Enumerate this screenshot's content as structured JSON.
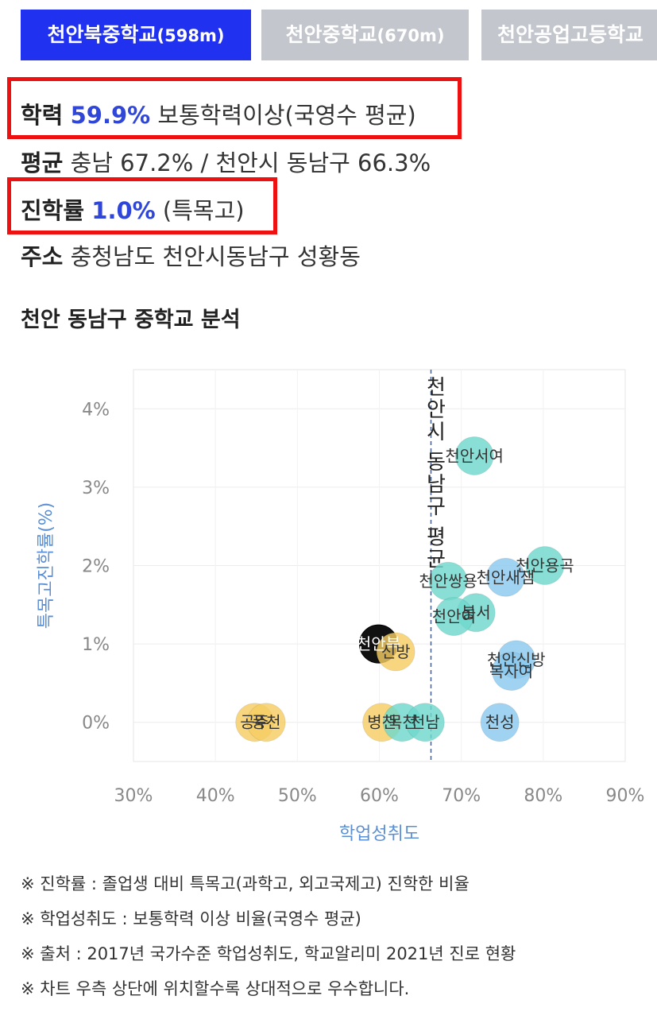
{
  "tabs": [
    {
      "name": "천안북중학교",
      "dist": "(598m)",
      "active": true
    },
    {
      "name": "천안중학교",
      "dist": "(670m)",
      "active": false
    },
    {
      "name": "천안공업고등학교",
      "dist": "",
      "active": false
    }
  ],
  "info": {
    "achievement_label": "학력",
    "achievement_value": "59.9%",
    "achievement_desc": "보통학력이상(국영수 평균)",
    "average_label": "평균",
    "average_text": "충남 67.2% / 천안시 동남구 66.3%",
    "advance_label": "진학률",
    "advance_value": "1.0%",
    "advance_desc": "(특목고)",
    "address_label": "주소",
    "address_text": "충청남도 천안시동남구 성황동"
  },
  "section_title": "천안 동남구 중학교 분석",
  "chart_data": {
    "type": "scatter",
    "xlabel": "학업성취도",
    "ylabel": "특목고진학률(%)",
    "xlim": [
      30,
      90
    ],
    "ylim": [
      -0.5,
      4.5
    ],
    "xticks": [
      "30%",
      "40%",
      "50%",
      "60%",
      "70%",
      "80%",
      "90%"
    ],
    "yticks": [
      "0%",
      "1%",
      "2%",
      "3%",
      "4%"
    ],
    "reference_line": {
      "x": 66.3,
      "label": "천안시 동남구 평균"
    },
    "colors": {
      "yellow": "#f5cd63",
      "teal": "#6fd8cc",
      "blue": "#8ac9ee",
      "black": "#111111"
    },
    "points": [
      {
        "label": "천안북",
        "x": 59.9,
        "y": 1.0,
        "color": "black"
      },
      {
        "label": "신방",
        "x": 62.0,
        "y": 0.9,
        "color": "yellow"
      },
      {
        "label": "공주",
        "x": 44.8,
        "y": 0.0,
        "color": "yellow"
      },
      {
        "label": "풍천",
        "x": 46.2,
        "y": 0.0,
        "color": "yellow"
      },
      {
        "label": "병천",
        "x": 60.3,
        "y": 0.0,
        "color": "yellow"
      },
      {
        "label": "목천",
        "x": 62.8,
        "y": 0.0,
        "color": "teal"
      },
      {
        "label": "천남",
        "x": 65.6,
        "y": 0.0,
        "color": "teal"
      },
      {
        "label": "천성",
        "x": 74.7,
        "y": 0.0,
        "color": "blue"
      },
      {
        "label": "천안서여",
        "x": 71.6,
        "y": 3.4,
        "color": "teal"
      },
      {
        "label": "천안용곡",
        "x": 80.2,
        "y": 2.0,
        "color": "teal"
      },
      {
        "label": "천안새샘",
        "x": 75.4,
        "y": 1.85,
        "color": "blue"
      },
      {
        "label": "천안쌍용",
        "x": 68.4,
        "y": 1.8,
        "color": "teal"
      },
      {
        "label": "봉서",
        "x": 71.8,
        "y": 1.4,
        "color": "teal"
      },
      {
        "label": "천안여",
        "x": 69.1,
        "y": 1.35,
        "color": "teal"
      },
      {
        "label": "천안신방",
        "x": 76.7,
        "y": 0.8,
        "color": "blue"
      },
      {
        "label": "복자여",
        "x": 76.1,
        "y": 0.65,
        "color": "blue"
      }
    ]
  },
  "notes": [
    "※ 진학률 : 졸업생 대비 특목고(과학고, 외고국제고) 진학한 비율",
    "※ 학업성취도 : 보통학력 이상 비율(국영수 평균)",
    "※ 출처 : 2017년 국가수준 학업성취도, 학교알리미 2021년 진로 현황",
    "※ 차트 우측 상단에 위치할수록 상대적으로 우수합니다."
  ]
}
